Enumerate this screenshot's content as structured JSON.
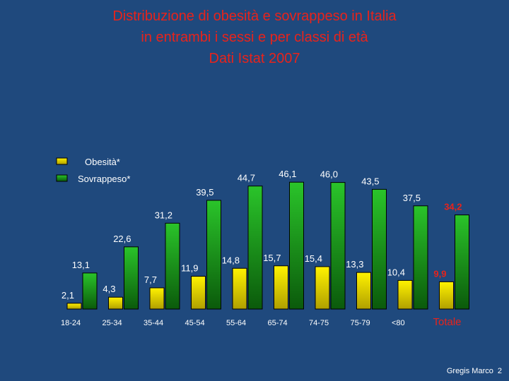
{
  "slide": {
    "title_lines": [
      "Distribuzione di obesità e sovrappeso in Italia",
      "in entrambi i sessi e per classi di età",
      "Dati Istat 2007"
    ],
    "author": "Gregis Marco",
    "page_number": "2"
  },
  "colors": {
    "background": "#1f497d",
    "title": "#e8231b",
    "obesity_fill": "#e8d800",
    "overweight_fill": "#1fa81f",
    "label_text": "#ffffff",
    "total_text": "#e8231b"
  },
  "chart_data": {
    "type": "bar",
    "categories": [
      "18-24",
      "25-34",
      "35-44",
      "45-54",
      "55-64",
      "65-74",
      "74-75",
      "75-79",
      "<80",
      "Totale"
    ],
    "series": [
      {
        "name": "Obesità*",
        "values": [
          2.1,
          4.3,
          7.7,
          11.9,
          14.8,
          15.7,
          15.4,
          13.3,
          10.4,
          9.9
        ]
      },
      {
        "name": "Sovrappeso*",
        "values": [
          13.1,
          22.6,
          31.2,
          39.5,
          44.7,
          46.1,
          46.0,
          43.5,
          37.5,
          34.2
        ]
      }
    ],
    "data_labels": [
      [
        "2,1",
        "4,3",
        "7,7",
        "11,9",
        "14,8",
        "15,7",
        "15,4",
        "13,3",
        "10,4",
        "9,9"
      ],
      [
        "13,1",
        "22,6",
        "31,2",
        "39,5",
        "44,7",
        "46,1",
        "46,0",
        "43,5",
        "37,5",
        "34,2"
      ]
    ],
    "highlight_category": "Totale",
    "ylim": [
      0,
      50
    ],
    "grid": false,
    "legend_position": "top-left"
  }
}
